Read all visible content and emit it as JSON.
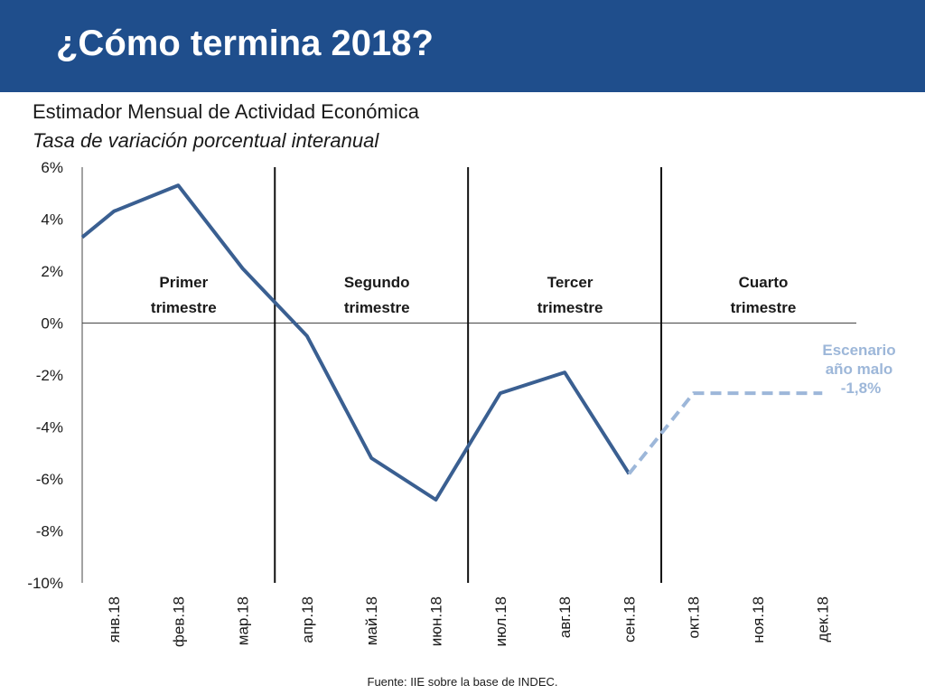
{
  "header": {
    "title": "¿Cómo termina 2018?"
  },
  "chart_data": {
    "type": "line",
    "title": "Estimador Mensual de Actividad Económica",
    "subtitle": "Tasa de variación porcentual interanual",
    "categories": [
      "янв.18",
      "фев.18",
      "мар.18",
      "апр.18",
      "май.18",
      "июн.18",
      "июл.18",
      "авг.18",
      "сен.18",
      "окт.18",
      "ноя.18",
      "дек.18"
    ],
    "series": [
      {
        "values": [
          4.3,
          5.3,
          2.1,
          -0.5,
          -5.2,
          -6.8,
          -2.7,
          -1.9,
          -5.8,
          null,
          null,
          null
        ],
        "style": "solid",
        "color": "#3a5f91",
        "leading_value": 3.3
      },
      {
        "name": "Escenario año malo",
        "values": [
          null,
          null,
          null,
          null,
          null,
          null,
          null,
          null,
          -5.8,
          -2.7,
          -2.7,
          -2.7
        ],
        "style": "dashed",
        "color": "#9db7d9"
      }
    ],
    "ylim": [
      -10,
      6
    ],
    "yticks": [
      6,
      4,
      2,
      0,
      -2,
      -4,
      -6,
      -8,
      -10
    ],
    "ytick_labels": [
      "6%",
      "4%",
      "2%",
      "0%",
      "-2%",
      "-4%",
      "-6%",
      "-8%",
      "-10%"
    ],
    "grid": false,
    "quarters": [
      {
        "line1": "Primer",
        "line2": "trimestre"
      },
      {
        "line1": "Segundo",
        "line2": "trimestre"
      },
      {
        "line1": "Tercer",
        "line2": "trimestre"
      },
      {
        "line1": "Cuarto",
        "line2": "trimestre"
      }
    ],
    "scenario_label": {
      "line1": "Escenario",
      "line2": "año malo",
      "line3": "-1,8%",
      "color": "#9db7d9"
    }
  },
  "footer": {
    "source": "Fuente: IIE sobre la base de INDEC."
  }
}
